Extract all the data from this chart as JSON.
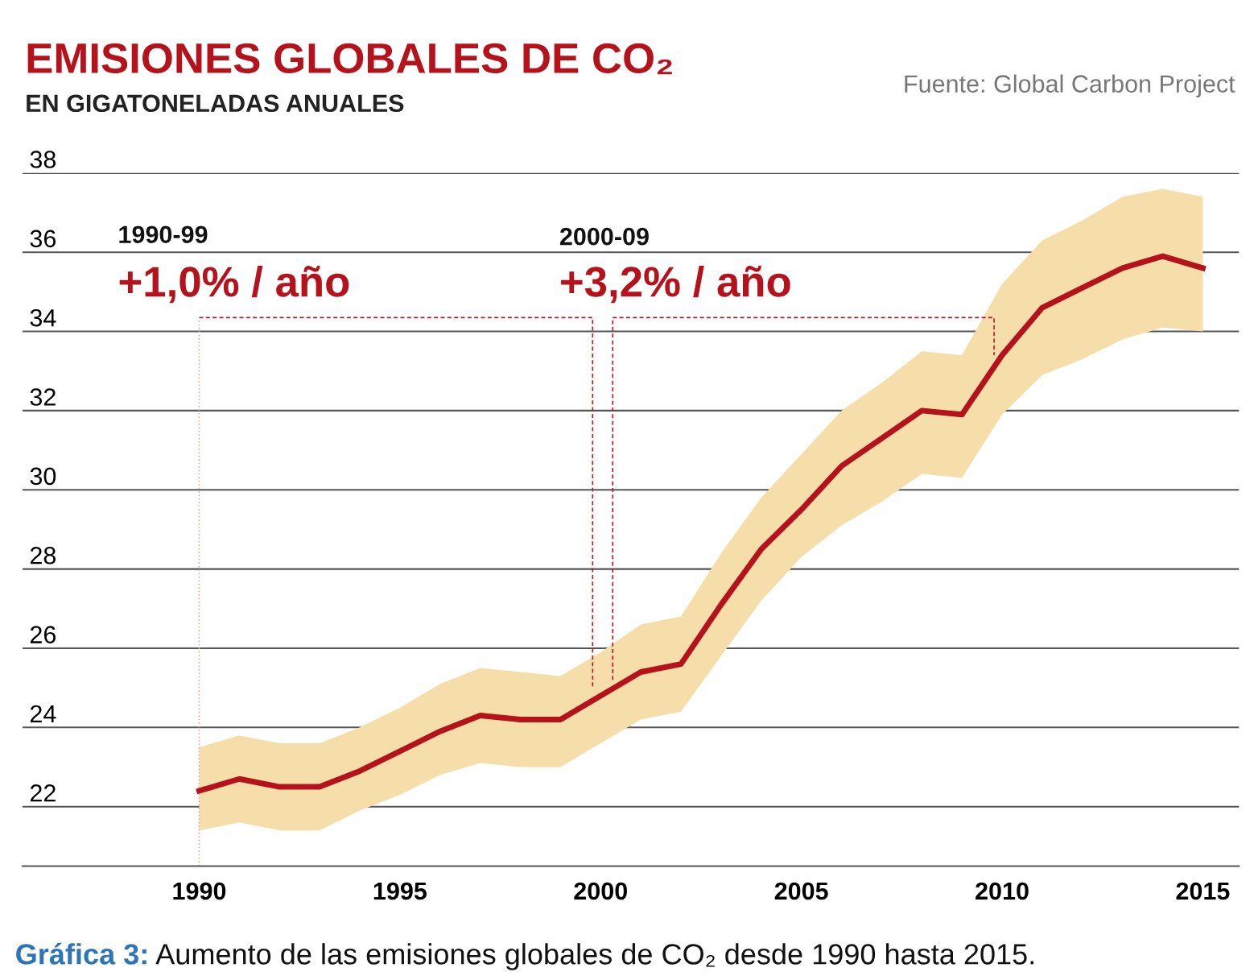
{
  "chart_data": {
    "type": "line",
    "title": "EMISIONES GLOBALES DE CO₂",
    "subtitle": "EN GIGATONELADAS ANUALES",
    "x": [
      1990,
      1991,
      1992,
      1993,
      1994,
      1995,
      1996,
      1997,
      1998,
      1999,
      2000,
      2001,
      2002,
      2003,
      2004,
      2005,
      2006,
      2007,
      2008,
      2009,
      2010,
      2011,
      2012,
      2013,
      2014,
      2015
    ],
    "series": [
      {
        "color": "#b5121b",
        "values": [
          22.4,
          22.7,
          22.5,
          22.5,
          22.9,
          23.4,
          23.9,
          24.3,
          24.2,
          24.2,
          24.8,
          25.4,
          25.6,
          27.1,
          28.5,
          29.5,
          30.6,
          31.3,
          32.0,
          31.9,
          33.4,
          34.6,
          35.1,
          35.6,
          35.9,
          35.6
        ],
        "lower": [
          21.4,
          21.6,
          21.4,
          21.4,
          21.9,
          22.3,
          22.8,
          23.1,
          23.0,
          23.0,
          23.6,
          24.2,
          24.4,
          25.8,
          27.2,
          28.3,
          29.1,
          29.7,
          30.4,
          30.3,
          31.9,
          32.9,
          33.3,
          33.8,
          34.1,
          34.0
        ],
        "upper": [
          23.5,
          23.8,
          23.6,
          23.6,
          24.0,
          24.5,
          25.1,
          25.5,
          25.4,
          25.3,
          25.9,
          26.6,
          26.8,
          28.4,
          29.8,
          30.9,
          32.0,
          32.7,
          33.5,
          33.4,
          35.2,
          36.3,
          36.8,
          37.4,
          37.6,
          37.4
        ]
      }
    ],
    "xlim": [
      1985.6,
      2015.9
    ],
    "ylim": [
      20.5,
      38
    ],
    "xticks": [
      1990,
      1995,
      2000,
      2005,
      2010,
      2015
    ],
    "yticks": [
      22,
      24,
      26,
      28,
      30,
      32,
      34,
      36,
      38
    ],
    "grid": "y",
    "marker": "none",
    "line_style": "solid",
    "ref_lines": [
      {
        "axis": "x",
        "value": 1990,
        "color": "#e8a0a8",
        "line_style": "dotted"
      }
    ],
    "annotations": [
      "1990-99",
      "+1,0% / año",
      "2000-09",
      "+3,2% / año",
      "Fuente: Global Carbon Project",
      "Gráfica 3:",
      "Aumento de las emisiones globales de CO₂ desde 1990 hasta 2015."
    ]
  }
}
